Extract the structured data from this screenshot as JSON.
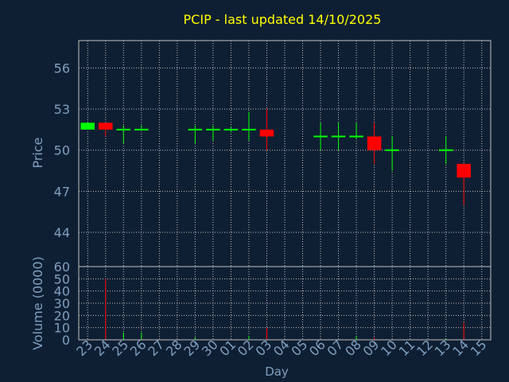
{
  "chart_data": [
    {
      "type": "candlestick",
      "title": "PCIP - last updated 14/10/2025",
      "ylabel": "Price",
      "ylim": [
        41.5,
        58
      ],
      "yticks": [
        44,
        47,
        50,
        53,
        56
      ],
      "grid": true,
      "categories": [
        "23",
        "24",
        "25",
        "26",
        "27",
        "28",
        "29",
        "30",
        "01",
        "02",
        "03",
        "04",
        "05",
        "06",
        "07",
        "08",
        "09",
        "10",
        "11",
        "12",
        "13",
        "14",
        "15"
      ],
      "candles": [
        {
          "x": "23",
          "open": 51.5,
          "high": 52.0,
          "low": 51.5,
          "close": 52.0
        },
        {
          "x": "24",
          "open": 52.0,
          "high": 52.0,
          "low": 51.0,
          "close": 51.5
        },
        {
          "x": "25",
          "open": 51.5,
          "high": 51.8,
          "low": 50.5,
          "close": 51.5
        },
        {
          "x": "26",
          "open": 51.5,
          "high": 51.8,
          "low": 51.5,
          "close": 51.5
        },
        {
          "x": "29",
          "open": 51.5,
          "high": 51.8,
          "low": 50.5,
          "close": 51.5
        },
        {
          "x": "30",
          "open": 51.5,
          "high": 51.8,
          "low": 50.7,
          "close": 51.5
        },
        {
          "x": "01",
          "open": 51.5,
          "high": 51.7,
          "low": 51.3,
          "close": 51.5
        },
        {
          "x": "02",
          "open": 51.5,
          "high": 52.8,
          "low": 50.7,
          "close": 51.5
        },
        {
          "x": "03",
          "open": 51.5,
          "high": 53.0,
          "low": 50.0,
          "close": 51.0
        },
        {
          "x": "06",
          "open": 51.0,
          "high": 52.0,
          "low": 50.0,
          "close": 51.0
        },
        {
          "x": "07",
          "open": 51.0,
          "high": 52.0,
          "low": 50.0,
          "close": 51.0
        },
        {
          "x": "08",
          "open": 51.0,
          "high": 52.0,
          "low": 50.8,
          "close": 51.0
        },
        {
          "x": "09",
          "open": 51.0,
          "high": 52.0,
          "low": 49.0,
          "close": 50.0
        },
        {
          "x": "10",
          "open": 50.0,
          "high": 51.0,
          "low": 48.5,
          "close": 50.0
        },
        {
          "x": "13",
          "open": 50.0,
          "high": 51.0,
          "low": 49.0,
          "close": 50.0
        },
        {
          "x": "14",
          "open": 49.0,
          "high": 49.0,
          "low": 46.0,
          "close": 48.0
        }
      ],
      "up_color": "#00ff00",
      "down_color": "#ff0000"
    },
    {
      "type": "bar",
      "xlabel": "Day",
      "ylabel": "Volume (0000)",
      "ylim": [
        0,
        60
      ],
      "yticks": [
        0,
        10,
        20,
        30,
        40,
        50,
        60
      ],
      "grid": true,
      "categories": [
        "23",
        "24",
        "25",
        "26",
        "27",
        "28",
        "29",
        "30",
        "01",
        "02",
        "03",
        "04",
        "05",
        "06",
        "07",
        "08",
        "09",
        "10",
        "11",
        "12",
        "13",
        "14",
        "15"
      ],
      "values": [
        0,
        50,
        6,
        6,
        0,
        0,
        2,
        0,
        0,
        3,
        10,
        0,
        0,
        0,
        0,
        3,
        2,
        0,
        0,
        0,
        1,
        14,
        0
      ],
      "colors": [
        "#00ff00",
        "#ff0000",
        "#00ff00",
        "#00ff00",
        "#00ff00",
        "#00ff00",
        "#00ff00",
        "#00ff00",
        "#00ff00",
        "#00ff00",
        "#ff0000",
        "#00ff00",
        "#00ff00",
        "#00ff00",
        "#00ff00",
        "#00ff00",
        "#ff0000",
        "#00ff00",
        "#00ff00",
        "#00ff00",
        "#00ff00",
        "#ff0000",
        "#00ff00"
      ]
    }
  ],
  "colors": {
    "background": "#0f1f33",
    "title": "#ffff00",
    "axis_text": "#7f9fbf",
    "grid": "#c0c0c0"
  }
}
